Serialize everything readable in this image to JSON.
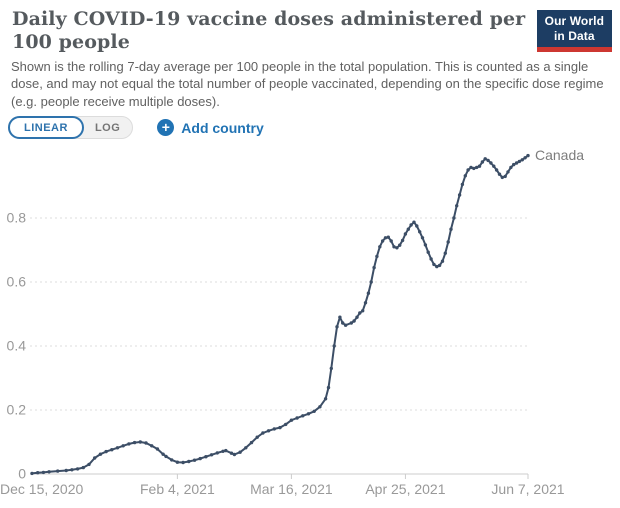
{
  "header": {
    "title": "Daily COVID-19 vaccine doses administered per 100 people",
    "subtitle": "Shown is the rolling 7-day average per 100 people in the total population. This is counted as a single dose, and may not equal the total number of people vaccinated, depending on the specific dose regime (e.g. people receive multiple doses).",
    "logo": {
      "line1": "Our World",
      "line2": "in Data",
      "bg_color": "#1d3d63",
      "stripe_color": "#cd3731"
    }
  },
  "controls": {
    "scale_toggle": {
      "options": [
        "LINEAR",
        "LOG"
      ],
      "selected": "LINEAR"
    },
    "add_country_label": "Add country",
    "plus_icon_glyph": "+",
    "accent_blue": "#2173b4"
  },
  "chart_data": {
    "type": "line",
    "title": "Daily COVID-19 vaccine doses administered per 100 people",
    "xlabel": "",
    "ylabel": "",
    "ylim": [
      0,
      1.0
    ],
    "xlim": [
      "2020-12-15",
      "2021-06-07"
    ],
    "grid": "horizontal-dashed",
    "legend_position": "end-of-line-label",
    "y_ticks": [
      {
        "value": 0,
        "label": "0"
      },
      {
        "value": 0.2,
        "label": "0.2"
      },
      {
        "value": 0.4,
        "label": "0.4"
      },
      {
        "value": 0.6,
        "label": "0.6"
      },
      {
        "value": 0.8,
        "label": "0.8"
      }
    ],
    "x_ticks": [
      {
        "date": "2020-12-15",
        "label": "Dec 15, 2020"
      },
      {
        "date": "2021-02-04",
        "label": "Feb 4, 2021"
      },
      {
        "date": "2021-03-16",
        "label": "Mar 16, 2021"
      },
      {
        "date": "2021-04-25",
        "label": "Apr 25, 2021"
      },
      {
        "date": "2021-06-07",
        "label": "Jun 7, 2021"
      }
    ],
    "axis_color": "#cccccc",
    "gridline_color": "#dedede",
    "tick_label_color": "#999999",
    "entity_label_color": "#7d7d7d",
    "series": [
      {
        "name": "Canada",
        "color": "#3C4E66",
        "points": [
          [
            "2020-12-15",
            0.002
          ],
          [
            "2020-12-17",
            0.004
          ],
          [
            "2020-12-19",
            0.005
          ],
          [
            "2020-12-21",
            0.007
          ],
          [
            "2020-12-24",
            0.009
          ],
          [
            "2020-12-27",
            0.011
          ],
          [
            "2020-12-29",
            0.013
          ],
          [
            "2020-12-31",
            0.016
          ],
          [
            "2021-01-02",
            0.02
          ],
          [
            "2021-01-04",
            0.03
          ],
          [
            "2021-01-06",
            0.05
          ],
          [
            "2021-01-08",
            0.062
          ],
          [
            "2021-01-10",
            0.07
          ],
          [
            "2021-01-12",
            0.076
          ],
          [
            "2021-01-14",
            0.082
          ],
          [
            "2021-01-16",
            0.088
          ],
          [
            "2021-01-18",
            0.094
          ],
          [
            "2021-01-20",
            0.098
          ],
          [
            "2021-01-22",
            0.1
          ],
          [
            "2021-01-24",
            0.097
          ],
          [
            "2021-01-26",
            0.088
          ],
          [
            "2021-01-28",
            0.078
          ],
          [
            "2021-01-30",
            0.062
          ],
          [
            "2021-01-31",
            0.055
          ],
          [
            "2021-02-02",
            0.044
          ],
          [
            "2021-02-04",
            0.037
          ],
          [
            "2021-02-06",
            0.036
          ],
          [
            "2021-02-08",
            0.039
          ],
          [
            "2021-02-10",
            0.043
          ],
          [
            "2021-02-12",
            0.048
          ],
          [
            "2021-02-14",
            0.054
          ],
          [
            "2021-02-16",
            0.06
          ],
          [
            "2021-02-18",
            0.066
          ],
          [
            "2021-02-20",
            0.071
          ],
          [
            "2021-02-21",
            0.073
          ],
          [
            "2021-02-23",
            0.065
          ],
          [
            "2021-02-24",
            0.061
          ],
          [
            "2021-02-26",
            0.068
          ],
          [
            "2021-02-28",
            0.082
          ],
          [
            "2021-03-02",
            0.098
          ],
          [
            "2021-03-04",
            0.115
          ],
          [
            "2021-03-06",
            0.128
          ],
          [
            "2021-03-08",
            0.135
          ],
          [
            "2021-03-10",
            0.141
          ],
          [
            "2021-03-12",
            0.145
          ],
          [
            "2021-03-14",
            0.155
          ],
          [
            "2021-03-16",
            0.168
          ],
          [
            "2021-03-18",
            0.175
          ],
          [
            "2021-03-20",
            0.182
          ],
          [
            "2021-03-22",
            0.188
          ],
          [
            "2021-03-24",
            0.196
          ],
          [
            "2021-03-26",
            0.21
          ],
          [
            "2021-03-28",
            0.235
          ],
          [
            "2021-03-29",
            0.27
          ],
          [
            "2021-03-30",
            0.33
          ],
          [
            "2021-03-31",
            0.4
          ],
          [
            "2021-04-01",
            0.46
          ],
          [
            "2021-04-02",
            0.49
          ],
          [
            "2021-04-03",
            0.472
          ],
          [
            "2021-04-04",
            0.465
          ],
          [
            "2021-04-06",
            0.472
          ],
          [
            "2021-04-07",
            0.478
          ],
          [
            "2021-04-08",
            0.49
          ],
          [
            "2021-04-09",
            0.503
          ],
          [
            "2021-04-10",
            0.51
          ],
          [
            "2021-04-11",
            0.535
          ],
          [
            "2021-04-12",
            0.565
          ],
          [
            "2021-04-13",
            0.6
          ],
          [
            "2021-04-14",
            0.645
          ],
          [
            "2021-04-15",
            0.68
          ],
          [
            "2021-04-16",
            0.71
          ],
          [
            "2021-04-17",
            0.728
          ],
          [
            "2021-04-18",
            0.738
          ],
          [
            "2021-04-19",
            0.74
          ],
          [
            "2021-04-20",
            0.728
          ],
          [
            "2021-04-21",
            0.71
          ],
          [
            "2021-04-22",
            0.707
          ],
          [
            "2021-04-23",
            0.715
          ],
          [
            "2021-04-24",
            0.73
          ],
          [
            "2021-04-25",
            0.75
          ],
          [
            "2021-04-26",
            0.765
          ],
          [
            "2021-04-27",
            0.778
          ],
          [
            "2021-04-28",
            0.787
          ],
          [
            "2021-04-29",
            0.775
          ],
          [
            "2021-04-30",
            0.757
          ],
          [
            "2021-05-01",
            0.738
          ],
          [
            "2021-05-02",
            0.716
          ],
          [
            "2021-05-03",
            0.693
          ],
          [
            "2021-05-04",
            0.672
          ],
          [
            "2021-05-05",
            0.655
          ],
          [
            "2021-05-06",
            0.648
          ],
          [
            "2021-05-07",
            0.652
          ],
          [
            "2021-05-08",
            0.665
          ],
          [
            "2021-05-09",
            0.69
          ],
          [
            "2021-05-10",
            0.725
          ],
          [
            "2021-05-11",
            0.765
          ],
          [
            "2021-05-12",
            0.8
          ],
          [
            "2021-05-13",
            0.838
          ],
          [
            "2021-05-14",
            0.872
          ],
          [
            "2021-05-15",
            0.905
          ],
          [
            "2021-05-16",
            0.932
          ],
          [
            "2021-05-17",
            0.95
          ],
          [
            "2021-05-18",
            0.958
          ],
          [
            "2021-05-19",
            0.955
          ],
          [
            "2021-05-20",
            0.958
          ],
          [
            "2021-05-21",
            0.962
          ],
          [
            "2021-05-22",
            0.975
          ],
          [
            "2021-05-23",
            0.985
          ],
          [
            "2021-05-24",
            0.98
          ],
          [
            "2021-05-25",
            0.972
          ],
          [
            "2021-05-26",
            0.962
          ],
          [
            "2021-05-27",
            0.95
          ],
          [
            "2021-05-28",
            0.937
          ],
          [
            "2021-05-29",
            0.927
          ],
          [
            "2021-05-30",
            0.93
          ],
          [
            "2021-05-31",
            0.944
          ],
          [
            "2021-06-01",
            0.958
          ],
          [
            "2021-06-02",
            0.967
          ],
          [
            "2021-06-03",
            0.972
          ],
          [
            "2021-06-04",
            0.977
          ],
          [
            "2021-06-05",
            0.982
          ],
          [
            "2021-06-06",
            0.988
          ],
          [
            "2021-06-07",
            0.995
          ]
        ]
      }
    ]
  }
}
